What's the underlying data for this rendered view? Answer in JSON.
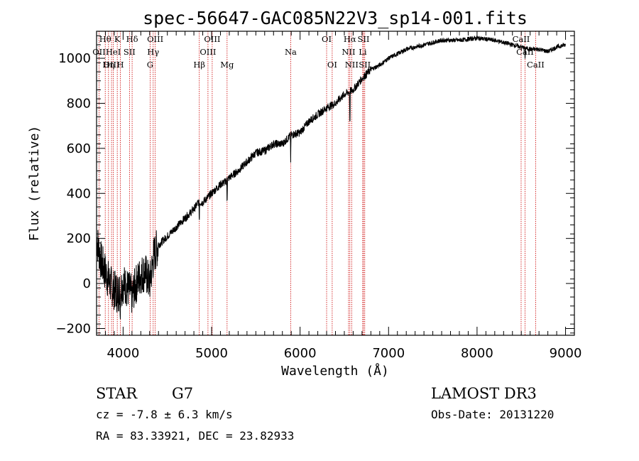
{
  "chart_data": {
    "type": "line",
    "title": "spec-56647-GAC085N22V3_sp14-001.fits",
    "xlabel": "Wavelength (Å)",
    "ylabel": "Flux (relative)",
    "xlim": [
      3700,
      9100
    ],
    "ylim": [
      -230,
      1120
    ],
    "xticks": [
      4000,
      5000,
      6000,
      7000,
      8000,
      9000
    ],
    "yticks": [
      -200,
      0,
      200,
      400,
      600,
      800,
      1000
    ],
    "series": [
      {
        "name": "spectrum",
        "x": [
          3700,
          3750,
          3800,
          3850,
          3900,
          3950,
          4000,
          4050,
          4100,
          4150,
          4200,
          4250,
          4300,
          4350,
          4400,
          4500,
          4600,
          4700,
          4800,
          4850,
          4900,
          5000,
          5100,
          5150,
          5200,
          5300,
          5400,
          5500,
          5600,
          5700,
          5800,
          5900,
          6000,
          6100,
          6200,
          6300,
          6400,
          6500,
          6550,
          6600,
          6700,
          6800,
          6900,
          7000,
          7200,
          7400,
          7600,
          7700,
          7800,
          8000,
          8200,
          8400,
          8500,
          8600,
          8700,
          8800,
          8900,
          9000
        ],
        "y": [
          200,
          100,
          50,
          0,
          -30,
          -40,
          0,
          -20,
          -50,
          0,
          40,
          50,
          0,
          130,
          170,
          210,
          250,
          290,
          330,
          360,
          360,
          400,
          440,
          450,
          470,
          500,
          540,
          580,
          590,
          620,
          620,
          660,
          670,
          720,
          750,
          780,
          800,
          840,
          850,
          860,
          910,
          950,
          970,
          1000,
          1040,
          1060,
          1080,
          1080,
          1080,
          1090,
          1080,
          1060,
          1050,
          1040,
          1040,
          1030,
          1050,
          1060
        ]
      }
    ],
    "spectral_lines": [
      {
        "name": "Hθ",
        "wl": 3798,
        "row": 0
      },
      {
        "name": "OII",
        "wl": 3728,
        "row": 1
      },
      {
        "name": "OIII",
        "wl": 3869,
        "row": 2
      },
      {
        "name": "HeI",
        "wl": 3889,
        "row": 1
      },
      {
        "name": "Hη",
        "wl": 3835,
        "row": 2
      },
      {
        "name": "K",
        "wl": 3934,
        "row": 0
      },
      {
        "name": "SII",
        "wl": 4072,
        "row": 1
      },
      {
        "name": "H",
        "wl": 3969,
        "row": 2
      },
      {
        "name": "Hδ",
        "wl": 4102,
        "row": 0
      },
      {
        "name": "OIII",
        "wl": 4363,
        "row": 0
      },
      {
        "name": "Hγ",
        "wl": 4340,
        "row": 1
      },
      {
        "name": "G",
        "wl": 4305,
        "row": 2
      },
      {
        "name": "Hβ",
        "wl": 4861,
        "row": 2
      },
      {
        "name": "OIII",
        "wl": 5007,
        "row": 0
      },
      {
        "name": "OIII",
        "wl": 4959,
        "row": 1
      },
      {
        "name": "Mg",
        "wl": 5175,
        "row": 2
      },
      {
        "name": "Na",
        "wl": 5894,
        "row": 1
      },
      {
        "name": "OI",
        "wl": 6300,
        "row": 0
      },
      {
        "name": "OI",
        "wl": 6363,
        "row": 2
      },
      {
        "name": "Hα",
        "wl": 6563,
        "row": 0
      },
      {
        "name": "NII",
        "wl": 6548,
        "row": 1
      },
      {
        "name": "NII",
        "wl": 6583,
        "row": 2
      },
      {
        "name": "SII",
        "wl": 6717,
        "row": 0
      },
      {
        "name": "Li",
        "wl": 6708,
        "row": 1
      },
      {
        "name": "SII",
        "wl": 6731,
        "row": 2
      },
      {
        "name": "CaII",
        "wl": 8498,
        "row": 0
      },
      {
        "name": "CaII",
        "wl": 8542,
        "row": 1
      },
      {
        "name": "CaII",
        "wl": 8662,
        "row": 2
      }
    ]
  },
  "footer": {
    "object_type": "STAR",
    "subclass": "G7",
    "survey": "LAMOST DR3",
    "redshift": "cz = -7.8 ± 6.3 km/s",
    "obs_date": "Obs-Date: 20131220",
    "coords": "RA =  83.33921, DEC =  23.82933"
  },
  "colors": {
    "spectrum": "#000000",
    "line_marker": "#cc0000",
    "axis": "#000000"
  }
}
